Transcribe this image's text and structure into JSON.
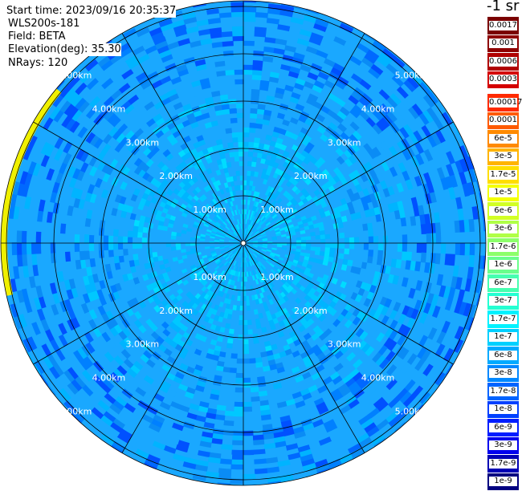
{
  "info": {
    "start_time": "Start time: 2023/09/16 20:35:37",
    "instrument": "WLS200s-181",
    "field": "Field: BETA",
    "elevation": "Elevation(deg): 35.30",
    "nrays": "NRays: 120"
  },
  "unit_label": "-1 sr",
  "range_ring_labels": [
    "1.00km",
    "2.00km",
    "3.00km",
    "4.00km",
    "5.00km"
  ],
  "colorbar": {
    "upper": [
      {
        "label": "0.0017",
        "color": "#7a0000"
      },
      {
        "label": "0.001",
        "color": "#8e0000"
      },
      {
        "label": "0.0006",
        "color": "#b00000"
      },
      {
        "label": "0.0003",
        "color": "#d40000"
      }
    ],
    "lower": [
      {
        "label": "0.00017",
        "color": "#ff2a00"
      },
      {
        "label": "0.0001",
        "color": "#ff5a00"
      },
      {
        "label": "6e-5",
        "color": "#ff8a00"
      },
      {
        "label": "3e-5",
        "color": "#ffb400"
      },
      {
        "label": "1.7e-5",
        "color": "#ffde00"
      },
      {
        "label": "1e-5",
        "color": "#f4ff00"
      },
      {
        "label": "6e-6",
        "color": "#d2ff24"
      },
      {
        "label": "3e-6",
        "color": "#b0ff46"
      },
      {
        "label": "1.7e-6",
        "color": "#8cff6a"
      },
      {
        "label": "1e-6",
        "color": "#6aff8c"
      },
      {
        "label": "6e-7",
        "color": "#46ffb0"
      },
      {
        "label": "3e-7",
        "color": "#24ffd2"
      },
      {
        "label": "1.7e-7",
        "color": "#00f2ff"
      },
      {
        "label": "1e-7",
        "color": "#00d0ff"
      },
      {
        "label": "6e-8",
        "color": "#00aaff"
      },
      {
        "label": "3e-8",
        "color": "#0088ff"
      },
      {
        "label": "1.7e-8",
        "color": "#0064ff"
      },
      {
        "label": "1e-8",
        "color": "#0040ff"
      },
      {
        "label": "6e-9",
        "color": "#001eff"
      },
      {
        "label": "3e-9",
        "color": "#0000ee"
      },
      {
        "label": "1.7e-9",
        "color": "#0000b4"
      },
      {
        "label": "1e-9",
        "color": "#000080"
      }
    ]
  },
  "colors": {
    "background": "#ffffff",
    "grid_lines": "#000000",
    "ring_label_text": "#ffffff",
    "near_field": "#00c8ff",
    "mid_field": "#1aa8ff",
    "far_field": "#0a8cf5",
    "edge_artifact": "#f0f000"
  }
}
